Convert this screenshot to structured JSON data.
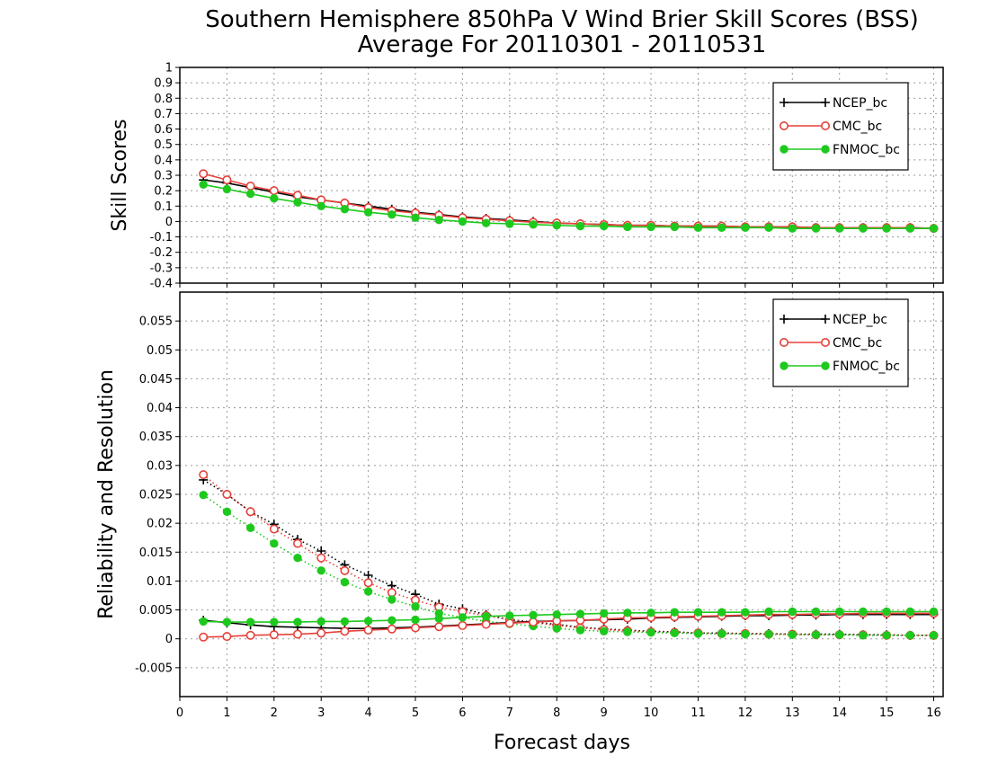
{
  "figure": {
    "title_line1": "Southern Hemisphere 850hPa V Wind Brier Skill Scores (BSS)",
    "title_line2": "Average For 20110301 - 20110531",
    "xlabel": "Forecast days"
  },
  "colors": {
    "ncep": "#000000",
    "cmc": "#e8403a",
    "fnmoc": "#1ec91e",
    "grid": "#9a9a9a"
  },
  "chart_data": [
    {
      "type": "line",
      "ylabel": "Skill Scores",
      "xlim": [
        0,
        16.2
      ],
      "ylim": [
        -0.4,
        1
      ],
      "xticks": [
        0,
        1,
        2,
        3,
        4,
        5,
        6,
        7,
        8,
        9,
        10,
        11,
        12,
        13,
        14,
        15,
        16
      ],
      "yticks": [
        -0.4,
        -0.3,
        -0.2,
        -0.1,
        0,
        0.1,
        0.2,
        0.3,
        0.4,
        0.5,
        0.6,
        0.7,
        0.8,
        0.9,
        1
      ],
      "ytick_labels": [
        "-0.4",
        "-0.3",
        "-0.2",
        "-0.1",
        "0",
        "0.1",
        "0.2",
        "0.3",
        "0.4",
        "0.5",
        "0.6",
        "0.7",
        "0.8",
        "0.9",
        "1"
      ],
      "grid": true,
      "legend": [
        "NCEP_bc",
        "CMC_bc",
        "FNMOC_bc"
      ],
      "legend_position": "top-right",
      "x": [
        0.5,
        1,
        1.5,
        2,
        2.5,
        3,
        3.5,
        4,
        4.5,
        5,
        5.5,
        6,
        6.5,
        7,
        7.5,
        8,
        8.5,
        9,
        9.5,
        10,
        10.5,
        11,
        11.5,
        12,
        12.5,
        13,
        13.5,
        14,
        14.5,
        15,
        15.5,
        16
      ],
      "series": [
        {
          "name": "NCEP_bc",
          "line": "solid",
          "marker": "plus",
          "color": "#000000",
          "values": [
            0.27,
            0.25,
            0.22,
            0.19,
            0.16,
            0.14,
            0.12,
            0.1,
            0.08,
            0.06,
            0.045,
            0.03,
            0.02,
            0.01,
            0,
            -0.01,
            -0.015,
            -0.02,
            -0.025,
            -0.025,
            -0.03,
            -0.03,
            -0.03,
            -0.035,
            -0.035,
            -0.035,
            -0.04,
            -0.04,
            -0.04,
            -0.04,
            -0.04,
            -0.045
          ]
        },
        {
          "name": "CMC_bc",
          "line": "solid",
          "marker": "open-circle",
          "color": "#e8403a",
          "values": [
            0.31,
            0.27,
            0.23,
            0.2,
            0.17,
            0.14,
            0.12,
            0.09,
            0.07,
            0.055,
            0.04,
            0.025,
            0.015,
            0.005,
            -0.005,
            -0.01,
            -0.015,
            -0.02,
            -0.025,
            -0.025,
            -0.03,
            -0.03,
            -0.03,
            -0.035,
            -0.035,
            -0.035,
            -0.04,
            -0.04,
            -0.04,
            -0.04,
            -0.04,
            -0.045
          ]
        },
        {
          "name": "FNMOC_bc",
          "line": "solid",
          "marker": "filled-circle",
          "color": "#1ec91e",
          "values": [
            0.24,
            0.21,
            0.18,
            0.15,
            0.125,
            0.1,
            0.08,
            0.06,
            0.045,
            0.025,
            0.01,
            0,
            -0.01,
            -0.015,
            -0.02,
            -0.025,
            -0.03,
            -0.03,
            -0.035,
            -0.035,
            -0.035,
            -0.04,
            -0.04,
            -0.04,
            -0.04,
            -0.045,
            -0.045,
            -0.045,
            -0.045,
            -0.045,
            -0.045,
            -0.045
          ]
        }
      ]
    },
    {
      "type": "line",
      "ylabel": "Reliability and Resolution",
      "xlim": [
        0,
        16.2
      ],
      "ylim": [
        -0.01,
        0.06
      ],
      "xticks": [
        0,
        1,
        2,
        3,
        4,
        5,
        6,
        7,
        8,
        9,
        10,
        11,
        12,
        13,
        14,
        15,
        16
      ],
      "yticks": [
        -0.005,
        0,
        0.005,
        0.01,
        0.015,
        0.02,
        0.025,
        0.03,
        0.035,
        0.04,
        0.045,
        0.05,
        0.055
      ],
      "ytick_labels": [
        "-0.005",
        "0",
        "0.005",
        "0.01",
        "0.015",
        "0.02",
        "0.025",
        "0.03",
        "0.035",
        "0.04",
        "0.045",
        "0.05",
        "0.055"
      ],
      "grid": true,
      "legend": [
        "NCEP_bc",
        "CMC_bc",
        "FNMOC_bc"
      ],
      "legend_position": "top-right",
      "x": [
        0.5,
        1,
        1.5,
        2,
        2.5,
        3,
        3.5,
        4,
        4.5,
        5,
        5.5,
        6,
        6.5,
        7,
        7.5,
        8,
        8.5,
        9,
        9.5,
        10,
        10.5,
        11,
        11.5,
        12,
        12.5,
        13,
        13.5,
        14,
        14.5,
        15,
        15.5,
        16
      ],
      "series": [
        {
          "name": "NCEP_bc",
          "component": "reliability",
          "line": "dotted",
          "marker": "plus",
          "color": "#000000",
          "values": [
            0.0275,
            0.025,
            0.022,
            0.0198,
            0.0172,
            0.0152,
            0.0128,
            0.011,
            0.0092,
            0.0077,
            0.006,
            0.0052,
            0.0042,
            0.0033,
            0.0029,
            0.0025,
            0.002,
            0.0017,
            0.0015,
            0.0013,
            0.0012,
            0.001,
            0.001,
            0.0009,
            0.0009,
            0.0008,
            0.0008,
            0.0008,
            0.0007,
            0.0007,
            0.0006,
            0.0006
          ]
        },
        {
          "name": "CMC_bc",
          "component": "reliability",
          "line": "dotted",
          "marker": "open-circle",
          "color": "#e8403a",
          "values": [
            0.0284,
            0.025,
            0.022,
            0.019,
            0.0165,
            0.014,
            0.0118,
            0.0097,
            0.008,
            0.0067,
            0.0055,
            0.0047,
            0.004,
            0.0033,
            0.0028,
            0.0023,
            0.0019,
            0.0016,
            0.0014,
            0.0012,
            0.0011,
            0.001,
            0.0009,
            0.0009,
            0.0008,
            0.0008,
            0.0007,
            0.0007,
            0.0007,
            0.0006,
            0.0006,
            0.0006
          ]
        },
        {
          "name": "FNMOC_bc",
          "component": "reliability",
          "line": "dotted",
          "marker": "filled-circle",
          "color": "#1ec91e",
          "values": [
            0.0249,
            0.022,
            0.0192,
            0.0165,
            0.014,
            0.0118,
            0.0098,
            0.0082,
            0.0068,
            0.0056,
            0.0044,
            0.0037,
            0.003,
            0.0026,
            0.0022,
            0.0018,
            0.0015,
            0.0013,
            0.0012,
            0.0011,
            0.001,
            0.0009,
            0.0009,
            0.0008,
            0.0008,
            0.0007,
            0.0007,
            0.0007,
            0.0006,
            0.0006,
            0.0006,
            0.0006
          ]
        },
        {
          "name": "NCEP_bc",
          "component": "resolution",
          "line": "solid",
          "marker": "plus",
          "color": "#000000",
          "values": [
            0.0032,
            0.0028,
            0.0024,
            0.0021,
            0.002,
            0.0019,
            0.0018,
            0.0018,
            0.0019,
            0.002,
            0.0022,
            0.0024,
            0.0026,
            0.0028,
            0.003,
            0.0031,
            0.0032,
            0.0033,
            0.0034,
            0.0036,
            0.0037,
            0.0038,
            0.0039,
            0.004,
            0.004,
            0.0041,
            0.0041,
            0.0042,
            0.0042,
            0.0042,
            0.0042,
            0.0042
          ]
        },
        {
          "name": "CMC_bc",
          "component": "resolution",
          "line": "solid",
          "marker": "open-circle",
          "color": "#e8403a",
          "values": [
            0.0003,
            0.0004,
            0.0006,
            0.0007,
            0.0008,
            0.001,
            0.0013,
            0.0015,
            0.0017,
            0.0019,
            0.0021,
            0.0023,
            0.0025,
            0.0027,
            0.0029,
            0.0031,
            0.0032,
            0.0034,
            0.0036,
            0.0037,
            0.0038,
            0.0039,
            0.004,
            0.0041,
            0.0042,
            0.0042,
            0.0043,
            0.0043,
            0.0044,
            0.0044,
            0.0044,
            0.0044
          ]
        },
        {
          "name": "FNMOC_bc",
          "component": "resolution",
          "line": "solid",
          "marker": "filled-circle",
          "color": "#1ec91e",
          "values": [
            0.003,
            0.0029,
            0.0029,
            0.0029,
            0.0029,
            0.003,
            0.003,
            0.0031,
            0.0032,
            0.0033,
            0.0035,
            0.0037,
            0.0039,
            0.004,
            0.0041,
            0.0042,
            0.0043,
            0.0044,
            0.0045,
            0.0045,
            0.0046,
            0.0046,
            0.0046,
            0.0046,
            0.0047,
            0.0047,
            0.0047,
            0.0047,
            0.0047,
            0.0047,
            0.0047,
            0.0047
          ]
        }
      ]
    }
  ]
}
